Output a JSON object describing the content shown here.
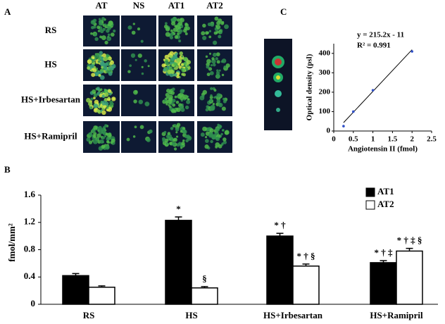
{
  "panel_labels": {
    "a": "A",
    "b": "B",
    "c": "C"
  },
  "autoradiograph": {
    "columns": [
      "AT",
      "NS",
      "AT1",
      "AT2"
    ],
    "rows": [
      "RS",
      "HS",
      "HS+Irbesartan",
      "HS+Ramipril"
    ]
  },
  "chart_data": [
    {
      "type": "scatter",
      "x_label": "Angiotensin II (fmol)",
      "y_label": "Optical density (psl)",
      "annotations": [
        "y = 215.2x - 11",
        "R² = 0.991"
      ],
      "series": [
        {
          "color": "#3050c8",
          "x": [
            0.25,
            0.5,
            1,
            2
          ],
          "values": [
            25,
            100,
            210,
            410
          ]
        }
      ],
      "trendline": {
        "color": "#000000",
        "x": [
          0.25,
          2
        ],
        "values": [
          43,
          419
        ]
      },
      "xlim": [
        0,
        2.5
      ],
      "xticks": [
        0,
        0.5,
        1,
        1.5,
        2,
        2.5
      ],
      "ylim": [
        0,
        450
      ],
      "yticks": [
        0,
        100,
        200,
        300,
        400
      ]
    },
    {
      "type": "bar",
      "y_label": "fmol/mm²",
      "categories": [
        "RS",
        "HS",
        "HS+Irbesartan",
        "HS+Ramipril"
      ],
      "series": [
        {
          "name": "AT1",
          "color": "#000000",
          "values": [
            0.42,
            1.23,
            1.0,
            0.61
          ],
          "errors": [
            0.03,
            0.05,
            0.04,
            0.03
          ],
          "annotations": [
            null,
            "*",
            "* †",
            "* † ‡"
          ]
        },
        {
          "name": "AT2",
          "color": "#ffffff",
          "values": [
            0.25,
            0.24,
            0.56,
            0.78
          ],
          "errors": [
            0.02,
            0.02,
            0.03,
            0.04
          ],
          "annotations": [
            null,
            "§",
            "* † §",
            "* † ‡ §"
          ]
        }
      ],
      "ylim": [
        0,
        1.6
      ],
      "yticks": [
        0,
        0.4,
        0.8,
        1.2,
        1.6
      ],
      "legend": "top-right"
    }
  ]
}
